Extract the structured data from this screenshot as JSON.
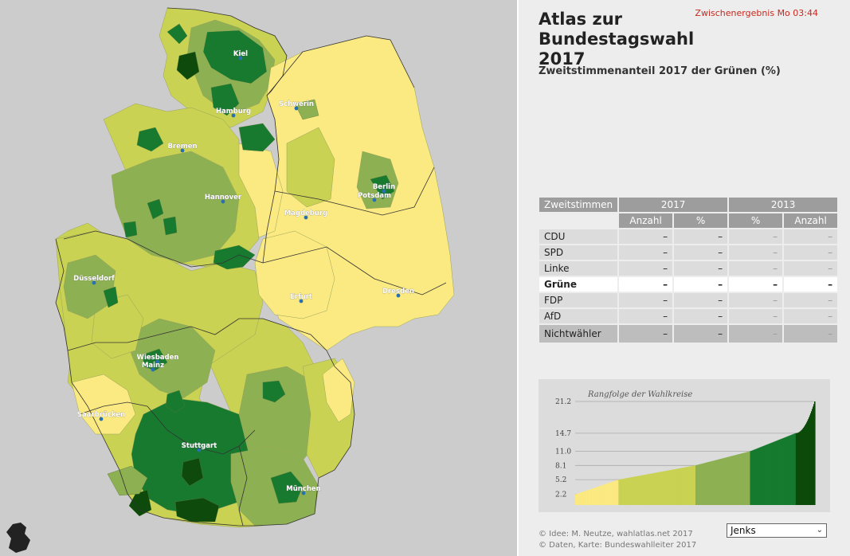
{
  "header": {
    "title_line1": "Atlas zur",
    "title_line2": "Bundestagswahl 2017",
    "status": "Zwischenergebnis Mo 03:44",
    "subtitle": "Zweitstimmenanteil 2017 der Grünen (%)"
  },
  "colors": {
    "c1": "#fbe981",
    "c2": "#c9d253",
    "c3": "#8db052",
    "c4": "#177a2f",
    "c5": "#0d4a0b",
    "map_bg": "#cccccc"
  },
  "map": {
    "cities": [
      "Kiel",
      "Hamburg",
      "Schwerin",
      "Bremen",
      "Hannover",
      "Berlin",
      "Potsdam",
      "Magdeburg",
      "Düsseldorf",
      "Erfurt",
      "Dresden",
      "Wiesbaden",
      "Mainz",
      "Saarbrücken",
      "Stuttgart",
      "München"
    ]
  },
  "table": {
    "col_label": "Zweitstimmen",
    "year_new": "2017",
    "year_old": "2013",
    "sub_anzahl": "Anzahl",
    "sub_pct": "%",
    "rows": [
      {
        "party": "CDU",
        "v": [
          "–",
          "–",
          "–",
          "–"
        ]
      },
      {
        "party": "SPD",
        "v": [
          "–",
          "–",
          "–",
          "–"
        ]
      },
      {
        "party": "Linke",
        "v": [
          "–",
          "–",
          "–",
          "–"
        ]
      },
      {
        "party": "Grüne",
        "v": [
          "–",
          "–",
          "–",
          "–"
        ]
      },
      {
        "party": "FDP",
        "v": [
          "–",
          "–",
          "–",
          "–"
        ]
      },
      {
        "party": "AfD",
        "v": [
          "–",
          "–",
          "–",
          "–"
        ]
      },
      {
        "party": "Nichtwähler",
        "v": [
          "–",
          "–",
          "–",
          "–"
        ]
      }
    ]
  },
  "chart_data": {
    "type": "area",
    "title": "Rangfolge der Wahlkreise",
    "y_ticks": [
      2.2,
      5.2,
      8.1,
      11.0,
      14.7,
      21.2
    ],
    "y_tick_labels": [
      "2.2",
      "5.2",
      "8.1",
      "11.0",
      "14.7",
      "21.2"
    ],
    "ylim": [
      0,
      22.5
    ],
    "thresholds": [
      5.2,
      8.1,
      11.0,
      14.7,
      21.2
    ],
    "n": 299,
    "class_bounds": [
      [
        0,
        2.2,
        5.2
      ],
      [
        1,
        5.2,
        8.1
      ],
      [
        2,
        8.1,
        11.0
      ],
      [
        3,
        11.0,
        14.7
      ],
      [
        4,
        14.7,
        21.2
      ]
    ]
  },
  "footer": {
    "credit1": "© Idee: M. Neutze, wahlatlas.net 2017",
    "credit2": "© Daten, Karte: Bundeswahlleiter 2017",
    "dropdown": "Jenks"
  }
}
